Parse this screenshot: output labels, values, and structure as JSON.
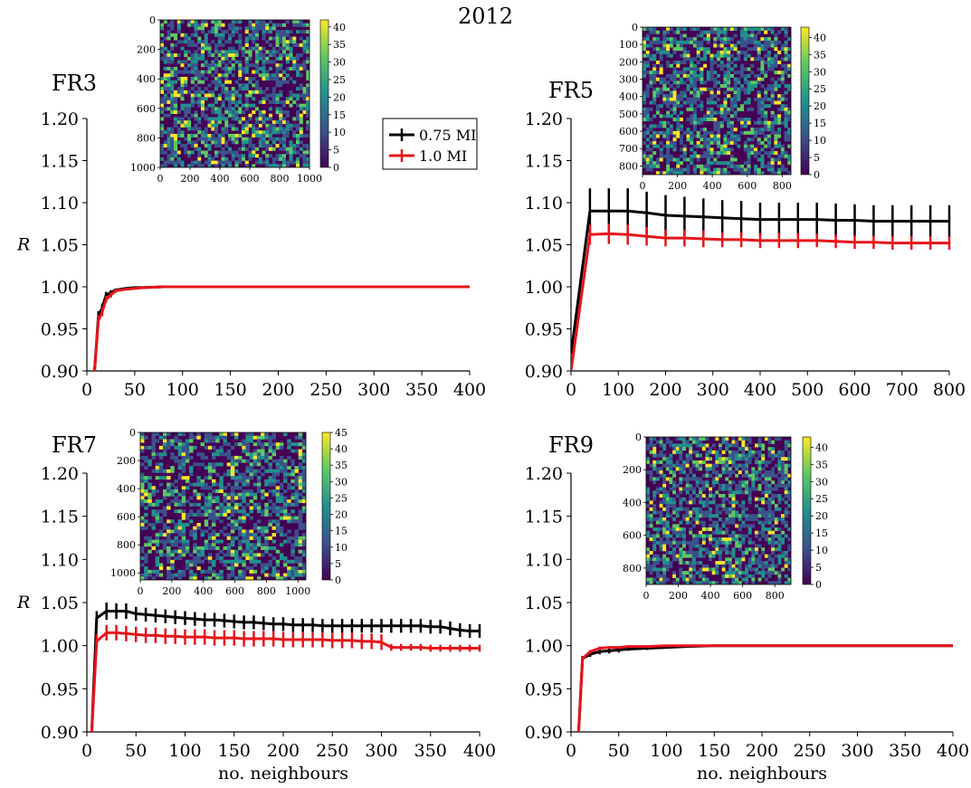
{
  "figure_title": "2012",
  "legend": [
    {
      "label": "0.75 MI",
      "color": "#000000"
    },
    {
      "label": "1.0 MI",
      "color": "#e8141b"
    }
  ],
  "colormap": {
    "name": "viridis",
    "stops": [
      "#440154",
      "#3b528b",
      "#21908d",
      "#5dc962",
      "#fde725"
    ]
  },
  "chart_data": [
    {
      "type": "line",
      "panel": "FR3",
      "title": "FR3",
      "xlabel": "",
      "ylabel": "R",
      "xlim": [
        0,
        400
      ],
      "ylim": [
        0.9,
        1.2
      ],
      "xticks": [
        0,
        50,
        100,
        150,
        200,
        250,
        300,
        350,
        400
      ],
      "yticks": [
        0.9,
        0.95,
        1.0,
        1.05,
        1.1,
        1.15,
        1.2
      ],
      "series": [
        {
          "name": "0.75 MI",
          "color": "#000000",
          "x": [
            8,
            12,
            16,
            20,
            25,
            30,
            40,
            50,
            60,
            80,
            100,
            150,
            200,
            250,
            300,
            350,
            400
          ],
          "y": [
            0.9,
            0.965,
            0.975,
            0.99,
            0.993,
            0.996,
            0.998,
            0.999,
            0.999,
            1.0,
            1.0,
            1.0,
            1.0,
            1.0,
            1.0,
            1.0,
            1.0
          ],
          "err": [
            0.005,
            0.006,
            0.005,
            0.004,
            0.003,
            0.002,
            0,
            0,
            0,
            0,
            0,
            0,
            0,
            0,
            0,
            0,
            0
          ]
        },
        {
          "name": "1.0 MI",
          "color": "#e8141b",
          "x": [
            8,
            12,
            16,
            20,
            25,
            30,
            40,
            50,
            60,
            80,
            100,
            150,
            200,
            250,
            300,
            350,
            400
          ],
          "y": [
            0.9,
            0.96,
            0.97,
            0.985,
            0.99,
            0.995,
            0.997,
            0.998,
            0.999,
            1.0,
            1.0,
            1.0,
            1.0,
            1.0,
            1.0,
            1.0,
            1.0
          ],
          "err": [
            0.005,
            0.006,
            0.005,
            0.004,
            0.003,
            0.002,
            0,
            0,
            0,
            0,
            0,
            0,
            0,
            0,
            0,
            0,
            0
          ]
        }
      ],
      "inset": {
        "xticks": [
          0,
          200,
          400,
          600,
          800,
          1000
        ],
        "yticks": [
          0,
          200,
          400,
          600,
          800,
          1000
        ],
        "range": [
          0,
          1000
        ],
        "cticks": [
          0,
          5,
          10,
          15,
          20,
          25,
          30,
          35,
          40
        ],
        "cmax": 42,
        "seed": 3
      }
    },
    {
      "type": "line",
      "panel": "FR5",
      "title": "FR5",
      "xlabel": "",
      "ylabel": "",
      "xlim": [
        0,
        800
      ],
      "ylim": [
        0.9,
        1.2
      ],
      "xticks": [
        0,
        100,
        200,
        300,
        400,
        500,
        600,
        700,
        800
      ],
      "yticks": [
        0.9,
        0.95,
        1.0,
        1.05,
        1.1,
        1.15,
        1.2
      ],
      "series": [
        {
          "name": "0.75 MI",
          "color": "#000000",
          "x": [
            0,
            40,
            80,
            120,
            160,
            200,
            240,
            280,
            320,
            360,
            400,
            440,
            480,
            520,
            560,
            600,
            640,
            680,
            720,
            760,
            800
          ],
          "y": [
            0.92,
            1.09,
            1.09,
            1.09,
            1.088,
            1.085,
            1.084,
            1.083,
            1.082,
            1.081,
            1.08,
            1.08,
            1.08,
            1.08,
            1.079,
            1.079,
            1.078,
            1.078,
            1.078,
            1.078,
            1.078
          ],
          "err": [
            0,
            0.027,
            0.027,
            0.027,
            0.025,
            0.024,
            0.023,
            0.022,
            0.021,
            0.021,
            0.02,
            0.02,
            0.02,
            0.02,
            0.02,
            0.019,
            0.019,
            0.019,
            0.019,
            0.019,
            0.019
          ]
        },
        {
          "name": "1.0 MI",
          "color": "#e8141b",
          "x": [
            0,
            40,
            80,
            120,
            160,
            200,
            240,
            280,
            320,
            360,
            400,
            440,
            480,
            520,
            560,
            600,
            640,
            680,
            720,
            760,
            800
          ],
          "y": [
            0.9,
            1.062,
            1.063,
            1.062,
            1.06,
            1.058,
            1.058,
            1.057,
            1.056,
            1.056,
            1.055,
            1.055,
            1.055,
            1.055,
            1.054,
            1.053,
            1.053,
            1.052,
            1.052,
            1.052,
            1.052
          ],
          "err": [
            0,
            0.012,
            0.012,
            0.012,
            0.011,
            0.01,
            0.01,
            0.01,
            0.009,
            0.009,
            0.009,
            0.009,
            0.009,
            0.008,
            0.008,
            0.008,
            0.008,
            0.008,
            0.008,
            0.008,
            0.008
          ]
        }
      ],
      "inset": {
        "xticks": [
          0,
          200,
          400,
          600,
          800
        ],
        "yticks": [
          0,
          100,
          200,
          300,
          400,
          500,
          600,
          700,
          800
        ],
        "range": [
          0,
          850
        ],
        "cticks": [
          0,
          5,
          10,
          15,
          20,
          25,
          30,
          35,
          40
        ],
        "cmax": 43,
        "seed": 5
      }
    },
    {
      "type": "line",
      "panel": "FR7",
      "title": "FR7",
      "xlabel": "no. neighbours",
      "ylabel": "R",
      "xlim": [
        0,
        400
      ],
      "ylim": [
        0.9,
        1.2
      ],
      "xticks": [
        0,
        50,
        100,
        150,
        200,
        250,
        300,
        350,
        400
      ],
      "yticks": [
        0.9,
        0.95,
        1.0,
        1.05,
        1.1,
        1.15,
        1.2
      ],
      "series": [
        {
          "name": "0.75 MI",
          "color": "#000000",
          "x": [
            5,
            10,
            20,
            30,
            40,
            50,
            60,
            70,
            80,
            90,
            100,
            110,
            120,
            130,
            140,
            150,
            160,
            170,
            180,
            190,
            200,
            210,
            220,
            230,
            240,
            250,
            260,
            270,
            280,
            290,
            300,
            310,
            320,
            330,
            340,
            350,
            360,
            370,
            380,
            390,
            400
          ],
          "y": [
            0.9,
            1.032,
            1.04,
            1.04,
            1.04,
            1.037,
            1.036,
            1.035,
            1.034,
            1.033,
            1.032,
            1.031,
            1.03,
            1.03,
            1.029,
            1.028,
            1.027,
            1.027,
            1.026,
            1.025,
            1.025,
            1.024,
            1.024,
            1.024,
            1.023,
            1.023,
            1.023,
            1.023,
            1.023,
            1.023,
            1.023,
            1.023,
            1.023,
            1.023,
            1.023,
            1.022,
            1.022,
            1.02,
            1.018,
            1.017,
            1.017
          ],
          "err": [
            0,
            0.008,
            0.01,
            0.009,
            0.009,
            0.008,
            0.008,
            0.008,
            0.008,
            0.008,
            0.008,
            0.008,
            0.008,
            0.008,
            0.008,
            0.008,
            0.008,
            0.008,
            0.008,
            0.008,
            0.008,
            0.008,
            0.008,
            0.008,
            0.008,
            0.008,
            0.008,
            0.008,
            0.008,
            0.008,
            0.008,
            0.008,
            0.008,
            0.008,
            0.008,
            0.008,
            0.008,
            0.008,
            0.008,
            0.008,
            0.008
          ]
        },
        {
          "name": "1.0 MI",
          "color": "#e8141b",
          "x": [
            5,
            10,
            20,
            30,
            40,
            50,
            60,
            70,
            80,
            90,
            100,
            110,
            120,
            130,
            140,
            150,
            160,
            170,
            180,
            190,
            200,
            210,
            220,
            230,
            240,
            250,
            260,
            270,
            280,
            290,
            300,
            310,
            320,
            330,
            340,
            350,
            360,
            370,
            380,
            390,
            400
          ],
          "y": [
            0.9,
            1.005,
            1.015,
            1.015,
            1.014,
            1.013,
            1.012,
            1.012,
            1.011,
            1.011,
            1.01,
            1.01,
            1.01,
            1.009,
            1.009,
            1.009,
            1.008,
            1.008,
            1.008,
            1.008,
            1.007,
            1.007,
            1.007,
            1.007,
            1.007,
            1.006,
            1.006,
            1.006,
            1.005,
            1.005,
            1.004,
            0.998,
            0.998,
            0.998,
            0.998,
            0.997,
            0.997,
            0.997,
            0.997,
            0.997,
            0.997
          ],
          "err": [
            0,
            0.008,
            0.009,
            0.009,
            0.009,
            0.009,
            0.009,
            0.009,
            0.009,
            0.009,
            0.009,
            0.009,
            0.009,
            0.009,
            0.009,
            0.009,
            0.009,
            0.009,
            0.009,
            0.009,
            0.009,
            0.009,
            0.009,
            0.009,
            0.009,
            0.009,
            0.009,
            0.009,
            0.009,
            0.009,
            0.009,
            0.004,
            0.004,
            0.004,
            0.004,
            0.004,
            0.004,
            0.004,
            0.004,
            0.004,
            0.004
          ]
        }
      ],
      "inset": {
        "xticks": [
          0,
          200,
          400,
          600,
          800,
          1000
        ],
        "yticks": [
          0,
          200,
          400,
          600,
          800,
          1000
        ],
        "range": [
          0,
          1050
        ],
        "cticks": [
          0,
          5,
          10,
          15,
          20,
          25,
          30,
          35,
          40,
          45
        ],
        "cmax": 45,
        "seed": 7
      }
    },
    {
      "type": "line",
      "panel": "FR9",
      "title": "FR9",
      "xlabel": "no. neighbours",
      "ylabel": "",
      "xlim": [
        0,
        400
      ],
      "ylim": [
        0.9,
        1.2
      ],
      "xticks": [
        0,
        50,
        100,
        150,
        200,
        250,
        300,
        350,
        400
      ],
      "yticks": [
        0.9,
        0.95,
        1.0,
        1.05,
        1.1,
        1.15,
        1.2
      ],
      "series": [
        {
          "name": "0.75 MI",
          "color": "#000000",
          "x": [
            8,
            12,
            20,
            30,
            40,
            50,
            60,
            80,
            100,
            120,
            150,
            200,
            250,
            300,
            350,
            400
          ],
          "y": [
            0.9,
            0.985,
            0.99,
            0.993,
            0.994,
            0.995,
            0.996,
            0.997,
            0.998,
            0.999,
            1.0,
            1.0,
            1.0,
            1.0,
            1.0,
            1.0
          ],
          "err": [
            0,
            0.003,
            0.003,
            0.003,
            0.003,
            0.003,
            0.002,
            0.002,
            0.001,
            0.001,
            0,
            0,
            0,
            0,
            0,
            0
          ]
        },
        {
          "name": "1.0 MI",
          "color": "#e8141b",
          "x": [
            8,
            12,
            20,
            30,
            40,
            50,
            60,
            80,
            100,
            120,
            150,
            200,
            250,
            300,
            350,
            400
          ],
          "y": [
            0.9,
            0.985,
            0.993,
            0.997,
            0.998,
            0.998,
            0.999,
            0.999,
            1.0,
            1.0,
            1.0,
            1.0,
            1.0,
            1.0,
            1.0,
            1.0
          ],
          "err": [
            0,
            0.002,
            0.002,
            0.002,
            0.001,
            0.001,
            0.001,
            0.001,
            0,
            0,
            0,
            0,
            0,
            0,
            0,
            0
          ]
        }
      ],
      "inset": {
        "xticks": [
          0,
          200,
          400,
          600,
          800
        ],
        "yticks": [
          0,
          200,
          400,
          600,
          800
        ],
        "range": [
          0,
          900
        ],
        "cticks": [
          0,
          5,
          10,
          15,
          20,
          25,
          30,
          35,
          40
        ],
        "cmax": 43,
        "seed": 9
      }
    }
  ]
}
